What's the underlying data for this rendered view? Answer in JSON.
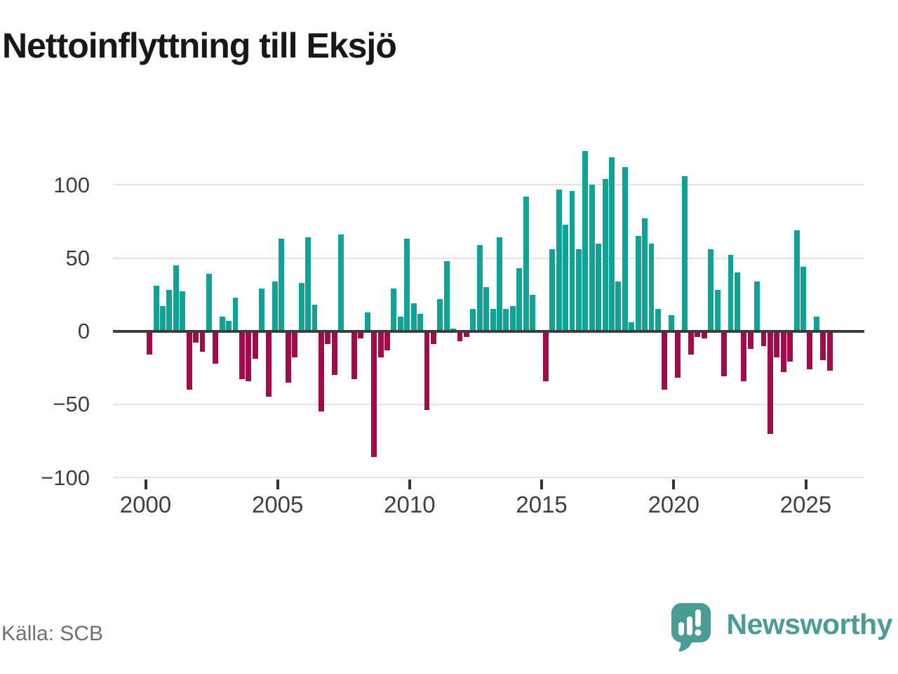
{
  "page": {
    "source_label": "Källa: SCB",
    "brand_name": "Newsworthy"
  },
  "chart_data": {
    "type": "bar",
    "title": "Nettoinflyttning till Eksjö",
    "xlabel": "",
    "ylabel": "",
    "ylim": [
      -108,
      130
    ],
    "grid": true,
    "y_ticks": [
      100,
      50,
      0,
      -50,
      -100
    ],
    "y_tick_labels": [
      "100",
      "50",
      "0",
      "−50",
      "−100"
    ],
    "x_tick_labels": [
      "2000",
      "2005",
      "2010",
      "2015",
      "2020",
      "2025"
    ],
    "positive_color": "#10a295",
    "negative_color": "#a00c4b",
    "categories": [
      "2000Q1",
      "2000Q2",
      "2000Q3",
      "2000Q4",
      "2001Q1",
      "2001Q2",
      "2001Q3",
      "2001Q4",
      "2002Q1",
      "2002Q2",
      "2002Q3",
      "2002Q4",
      "2003Q1",
      "2003Q2",
      "2003Q3",
      "2003Q4",
      "2004Q1",
      "2004Q2",
      "2004Q3",
      "2004Q4",
      "2005Q1",
      "2005Q2",
      "2005Q3",
      "2005Q4",
      "2006Q1",
      "2006Q2",
      "2006Q3",
      "2006Q4",
      "2007Q1",
      "2007Q2",
      "2007Q3",
      "2007Q4",
      "2008Q1",
      "2008Q2",
      "2008Q3",
      "2008Q4",
      "2009Q1",
      "2009Q2",
      "2009Q3",
      "2009Q4",
      "2010Q1",
      "2010Q2",
      "2010Q3",
      "2010Q4",
      "2011Q1",
      "2011Q2",
      "2011Q3",
      "2011Q4",
      "2012Q1",
      "2012Q2",
      "2012Q3",
      "2012Q4",
      "2013Q1",
      "2013Q2",
      "2013Q3",
      "2013Q4",
      "2014Q1",
      "2014Q2",
      "2014Q3",
      "2014Q4",
      "2015Q1",
      "2015Q2",
      "2015Q3",
      "2015Q4",
      "2016Q1",
      "2016Q2",
      "2016Q3",
      "2016Q4",
      "2017Q1",
      "2017Q2",
      "2017Q3",
      "2017Q4",
      "2018Q1",
      "2018Q2",
      "2018Q3",
      "2018Q4",
      "2019Q1",
      "2019Q2",
      "2019Q3",
      "2019Q4",
      "2020Q1",
      "2020Q2",
      "2020Q3",
      "2020Q4",
      "2021Q1",
      "2021Q2",
      "2021Q3",
      "2021Q4",
      "2022Q1",
      "2022Q2",
      "2022Q3",
      "2022Q4",
      "2023Q1",
      "2023Q2",
      "2023Q3",
      "2023Q4",
      "2024Q1",
      "2024Q2",
      "2024Q3",
      "2024Q4",
      "2025Q1",
      "2025Q2",
      "2025Q3",
      "2025Q4"
    ],
    "values": [
      -16,
      31,
      17,
      28,
      45,
      27,
      -40,
      -8,
      -14,
      39,
      -22,
      10,
      7,
      23,
      -33,
      -34,
      -19,
      29,
      -45,
      34,
      63,
      -35,
      -18,
      33,
      64,
      18,
      -55,
      -9,
      -30,
      66,
      0,
      -33,
      -5,
      13,
      -86,
      -18,
      -13,
      29,
      10,
      63,
      19,
      12,
      -54,
      -9,
      22,
      48,
      2,
      -7,
      -4,
      15,
      59,
      30,
      15,
      64,
      15,
      17,
      43,
      92,
      25,
      0,
      -34,
      56,
      97,
      73,
      96,
      56,
      123,
      100,
      60,
      104,
      119,
      34,
      112,
      6,
      65,
      77,
      60,
      15,
      -40,
      11,
      -32,
      106,
      -16,
      -4,
      -5,
      56,
      28,
      -31,
      52,
      40,
      -34,
      -12,
      34,
      -10,
      -70,
      -18,
      -28,
      -21,
      69,
      44,
      -26,
      10,
      -20,
      -27
    ]
  }
}
